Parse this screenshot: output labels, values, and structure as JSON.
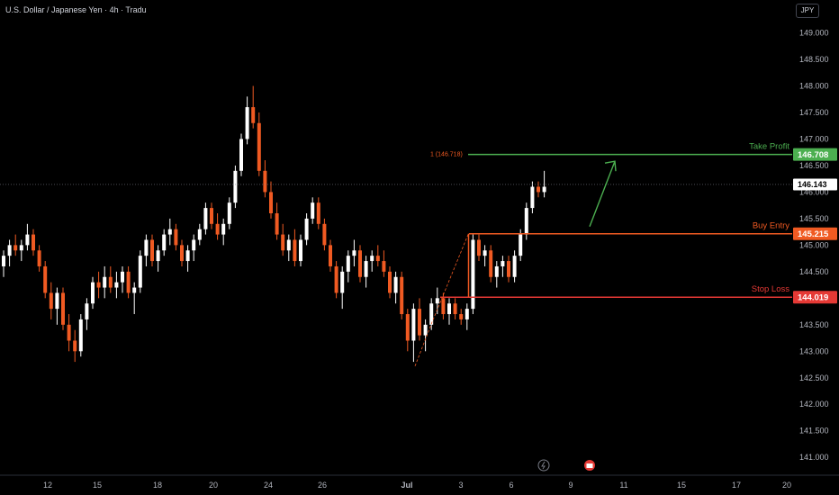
{
  "header": {
    "title": "U.S. Dollar / Japanese Yen · 4h · Tradu",
    "currency_button": "JPY"
  },
  "colors": {
    "up": "#ffffff",
    "down": "#f05a22",
    "take_profit": "#4caf50",
    "buy_entry": "#f05a22",
    "stop_loss": "#e53935",
    "arrow": "#4caf50",
    "grid_text": "#b2b5be"
  },
  "icons": [
    "lightning-icon",
    "calendar-icon"
  ],
  "chart_data": {
    "type": "candlestick",
    "symbol": "USDJPY",
    "timeframe": "4h",
    "ylim": [
      140.8,
      149.45
    ],
    "y_ticks": [
      "149.000",
      "148.500",
      "148.000",
      "147.500",
      "147.000",
      "146.500",
      "146.000",
      "145.500",
      "145.000",
      "144.500",
      "144.000",
      "143.500",
      "143.000",
      "142.500",
      "142.000",
      "141.500",
      "141.000"
    ],
    "x_ticks": [
      "12",
      "15",
      "18",
      "20",
      "24",
      "26",
      "Jul",
      "3",
      "6",
      "9",
      "11",
      "15",
      "17",
      "20"
    ],
    "current_price": "146.143",
    "levels": [
      {
        "name": "Take Profit",
        "value": 146.708,
        "label": "146.708"
      },
      {
        "name": "Buy Entry",
        "value": 145.215,
        "label": "145.215"
      },
      {
        "name": "Stop Loss",
        "value": 144.019,
        "label": "144.019"
      }
    ],
    "fib_label": "1 (146.718)",
    "candles": [
      [
        144.6,
        144.9,
        144.4,
        144.8
      ],
      [
        144.8,
        145.1,
        144.6,
        145.0
      ],
      [
        145.0,
        145.2,
        144.8,
        144.9
      ],
      [
        144.9,
        145.1,
        144.7,
        145.0
      ],
      [
        145.0,
        145.4,
        144.9,
        145.2
      ],
      [
        145.2,
        145.3,
        144.8,
        144.9
      ],
      [
        144.9,
        145.0,
        144.5,
        144.6
      ],
      [
        144.6,
        144.7,
        144.0,
        144.1
      ],
      [
        144.1,
        144.3,
        143.6,
        143.8
      ],
      [
        143.8,
        144.2,
        143.5,
        144.1
      ],
      [
        144.1,
        144.2,
        143.4,
        143.5
      ],
      [
        143.5,
        143.7,
        143.0,
        143.2
      ],
      [
        143.2,
        143.4,
        142.8,
        143.0
      ],
      [
        143.0,
        143.7,
        142.9,
        143.6
      ],
      [
        143.6,
        144.0,
        143.4,
        143.9
      ],
      [
        143.9,
        144.4,
        143.8,
        144.3
      ],
      [
        144.3,
        144.5,
        144.0,
        144.2
      ],
      [
        144.2,
        144.6,
        144.0,
        144.4
      ],
      [
        144.4,
        144.6,
        144.1,
        144.2
      ],
      [
        144.2,
        144.5,
        144.0,
        144.3
      ],
      [
        144.3,
        144.6,
        144.1,
        144.5
      ],
      [
        144.5,
        144.6,
        144.0,
        144.1
      ],
      [
        144.1,
        144.3,
        143.7,
        144.2
      ],
      [
        144.2,
        144.9,
        144.1,
        144.8
      ],
      [
        144.8,
        145.2,
        144.6,
        145.1
      ],
      [
        145.1,
        145.2,
        144.6,
        144.7
      ],
      [
        144.7,
        145.0,
        144.5,
        144.9
      ],
      [
        144.9,
        145.3,
        144.8,
        145.2
      ],
      [
        145.2,
        145.5,
        145.0,
        145.3
      ],
      [
        145.3,
        145.4,
        144.9,
        145.0
      ],
      [
        145.0,
        145.1,
        144.6,
        144.7
      ],
      [
        144.7,
        145.0,
        144.5,
        144.9
      ],
      [
        144.9,
        145.2,
        144.7,
        145.1
      ],
      [
        145.1,
        145.4,
        145.0,
        145.3
      ],
      [
        145.3,
        145.8,
        145.2,
        145.7
      ],
      [
        145.7,
        145.8,
        145.3,
        145.4
      ],
      [
        145.4,
        145.6,
        145.1,
        145.2
      ],
      [
        145.2,
        145.5,
        145.0,
        145.4
      ],
      [
        145.4,
        145.9,
        145.3,
        145.8
      ],
      [
        145.8,
        146.5,
        145.7,
        146.4
      ],
      [
        146.4,
        147.1,
        146.3,
        147.0
      ],
      [
        147.0,
        147.8,
        146.9,
        147.6
      ],
      [
        147.6,
        148.0,
        147.2,
        147.3
      ],
      [
        147.3,
        147.5,
        146.3,
        146.4
      ],
      [
        146.4,
        146.6,
        145.9,
        146.0
      ],
      [
        146.0,
        146.2,
        145.5,
        145.6
      ],
      [
        145.6,
        145.8,
        145.1,
        145.2
      ],
      [
        145.2,
        145.4,
        144.8,
        144.9
      ],
      [
        144.9,
        145.2,
        144.7,
        145.1
      ],
      [
        145.1,
        145.3,
        144.6,
        144.7
      ],
      [
        144.7,
        145.2,
        144.6,
        145.1
      ],
      [
        145.1,
        145.6,
        145.0,
        145.5
      ],
      [
        145.5,
        145.9,
        145.4,
        145.8
      ],
      [
        145.8,
        145.9,
        145.3,
        145.4
      ],
      [
        145.4,
        145.5,
        144.9,
        145.0
      ],
      [
        145.0,
        145.1,
        144.5,
        144.6
      ],
      [
        144.6,
        144.7,
        144.0,
        144.1
      ],
      [
        144.1,
        144.6,
        143.8,
        144.5
      ],
      [
        144.5,
        144.9,
        144.3,
        144.8
      ],
      [
        144.8,
        145.1,
        144.6,
        144.9
      ],
      [
        144.9,
        145.0,
        144.3,
        144.4
      ],
      [
        144.4,
        144.8,
        144.2,
        144.7
      ],
      [
        144.7,
        144.9,
        144.5,
        144.8
      ],
      [
        144.8,
        145.0,
        144.6,
        144.7
      ],
      [
        144.7,
        144.9,
        144.4,
        144.5
      ],
      [
        144.5,
        144.6,
        144.0,
        144.1
      ],
      [
        144.1,
        144.5,
        143.9,
        144.4
      ],
      [
        144.4,
        144.5,
        143.6,
        143.7
      ],
      [
        143.7,
        143.8,
        143.0,
        143.2
      ],
      [
        143.2,
        143.9,
        142.8,
        143.8
      ],
      [
        143.8,
        144.0,
        143.2,
        143.3
      ],
      [
        143.3,
        143.6,
        143.0,
        143.5
      ],
      [
        143.5,
        144.0,
        143.4,
        143.9
      ],
      [
        143.9,
        144.2,
        143.7,
        144.0
      ],
      [
        144.0,
        144.1,
        143.6,
        143.7
      ],
      [
        143.7,
        144.0,
        143.5,
        143.9
      ],
      [
        143.9,
        144.0,
        143.6,
        143.7
      ],
      [
        143.7,
        143.8,
        143.5,
        143.6
      ],
      [
        143.6,
        143.9,
        143.4,
        143.8
      ],
      [
        143.8,
        145.2,
        143.7,
        145.1
      ],
      [
        145.1,
        145.2,
        144.7,
        144.8
      ],
      [
        144.8,
        145.0,
        144.6,
        144.9
      ],
      [
        144.9,
        145.0,
        144.3,
        144.4
      ],
      [
        144.4,
        144.7,
        144.2,
        144.6
      ],
      [
        144.6,
        144.8,
        144.4,
        144.7
      ],
      [
        144.7,
        144.8,
        144.3,
        144.4
      ],
      [
        144.4,
        144.9,
        144.3,
        144.8
      ],
      [
        144.8,
        145.3,
        144.7,
        145.2
      ],
      [
        145.2,
        145.8,
        145.1,
        145.7
      ],
      [
        145.7,
        146.2,
        145.6,
        146.1
      ],
      [
        146.1,
        146.2,
        145.9,
        146.0
      ],
      [
        146.0,
        146.4,
        145.9,
        146.1
      ]
    ]
  }
}
